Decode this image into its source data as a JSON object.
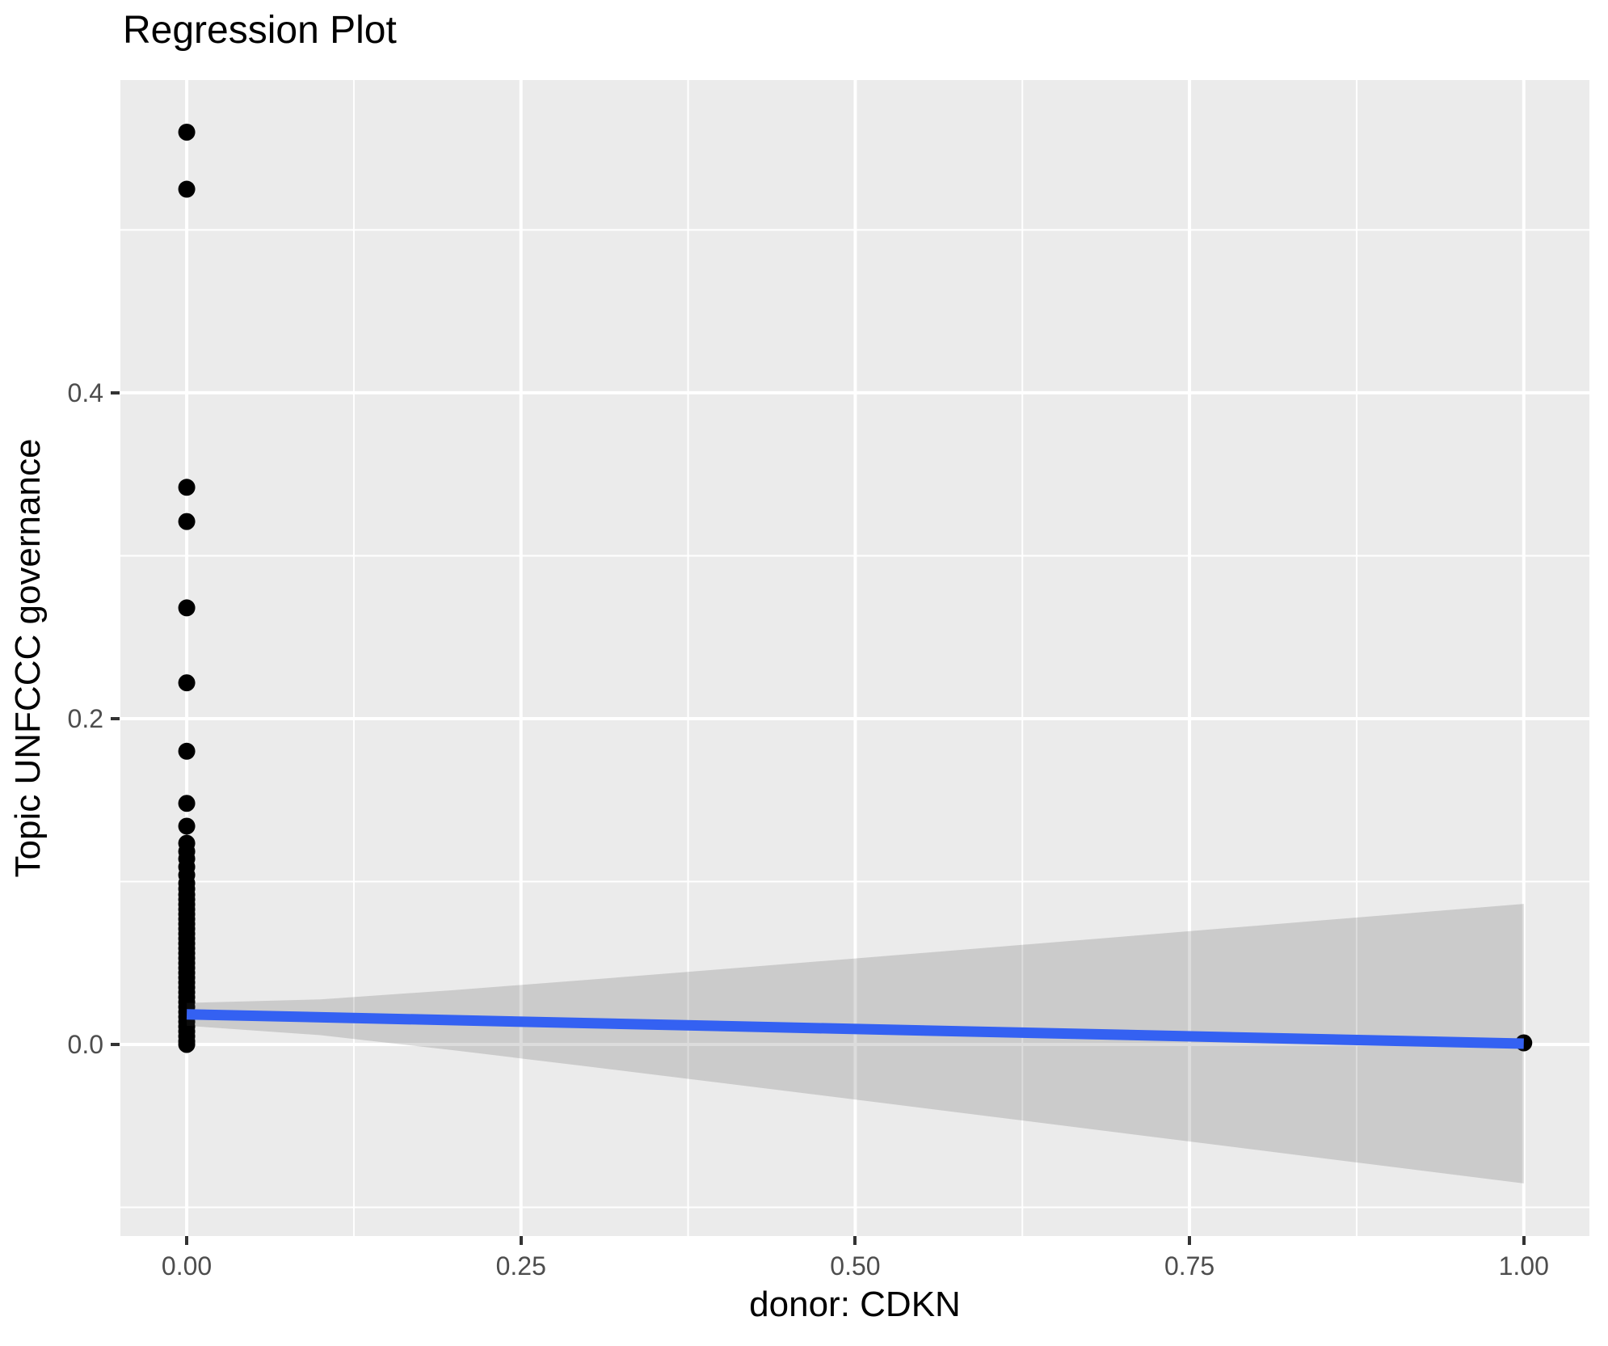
{
  "title": "Regression Plot",
  "axes": {
    "x": {
      "label": "donor: CDKN",
      "major_ticks": [
        {
          "value": 0.0,
          "label": "0.00"
        },
        {
          "value": 0.25,
          "label": "0.25"
        },
        {
          "value": 0.5,
          "label": "0.50"
        },
        {
          "value": 0.75,
          "label": "0.75"
        },
        {
          "value": 1.0,
          "label": "1.00"
        }
      ],
      "minor_ticks": [
        0.125,
        0.375,
        0.625,
        0.875
      ]
    },
    "y": {
      "label": "Topic UNFCCC governance",
      "major_ticks": [
        {
          "value": 0.0,
          "label": "0.0"
        },
        {
          "value": 0.2,
          "label": "0.2"
        },
        {
          "value": 0.4,
          "label": "0.4"
        }
      ],
      "minor_ticks": [
        -0.1,
        0.1,
        0.3,
        0.5
      ]
    }
  },
  "colors": {
    "panel_background": "#EBEBEB",
    "major_gridline": "#FFFFFF",
    "minor_gridline": "#FFFFFF",
    "point": "#000000",
    "regression_line": "#3461F2",
    "confidence_band": "rgba(60,60,60,0.18)",
    "tick_label": "#4D4D4D",
    "tick_mark": "#333333",
    "axis_title": "#000000",
    "title": "#000000"
  },
  "chart_data": {
    "type": "scatter",
    "title": "Regression Plot",
    "xlabel": "donor: CDKN",
    "ylabel": "Topic UNFCCC governance",
    "xlim": [
      -0.0496,
      1.0491
    ],
    "ylim": [
      -0.1176,
      0.592
    ],
    "grid": true,
    "legend": false,
    "points_at_x0": [
      0.56,
      0.525,
      0.342,
      0.321,
      0.268,
      0.222,
      0.18,
      0.148,
      0.134,
      0.1235,
      0.1185,
      0.114,
      0.109,
      0.104,
      0.099,
      0.0955,
      0.092,
      0.089,
      0.086,
      0.083,
      0.08,
      0.077,
      0.074,
      0.071,
      0.068,
      0.065,
      0.062,
      0.059,
      0.056,
      0.053,
      0.05,
      0.047,
      0.044,
      0.041,
      0.038,
      0.035,
      0.032,
      0.029,
      0.026,
      0.023,
      0.02,
      0.017,
      0.014,
      0.011,
      0.008,
      0.005,
      0.002,
      0.0
    ],
    "points_at_x1": [
      0.001
    ],
    "point_radius_px": 10.5,
    "regression_line": {
      "x": [
        0.0,
        1.0
      ],
      "y": [
        0.0185,
        0.0005
      ],
      "stroke_width_px": 13
    },
    "confidence_band": {
      "x": [
        0.0,
        0.1,
        0.2,
        0.3,
        0.4,
        0.5,
        0.6,
        0.7,
        0.8,
        0.9,
        1.0
      ],
      "top": [
        0.0255,
        0.0277,
        0.0334,
        0.0397,
        0.0462,
        0.0528,
        0.0595,
        0.0662,
        0.0729,
        0.0796,
        0.0863
      ],
      "bottom": [
        0.0115,
        0.0057,
        -0.0036,
        -0.0135,
        -0.0236,
        -0.0338,
        -0.0441,
        -0.0544,
        -0.0647,
        -0.075,
        -0.0853
      ]
    }
  }
}
